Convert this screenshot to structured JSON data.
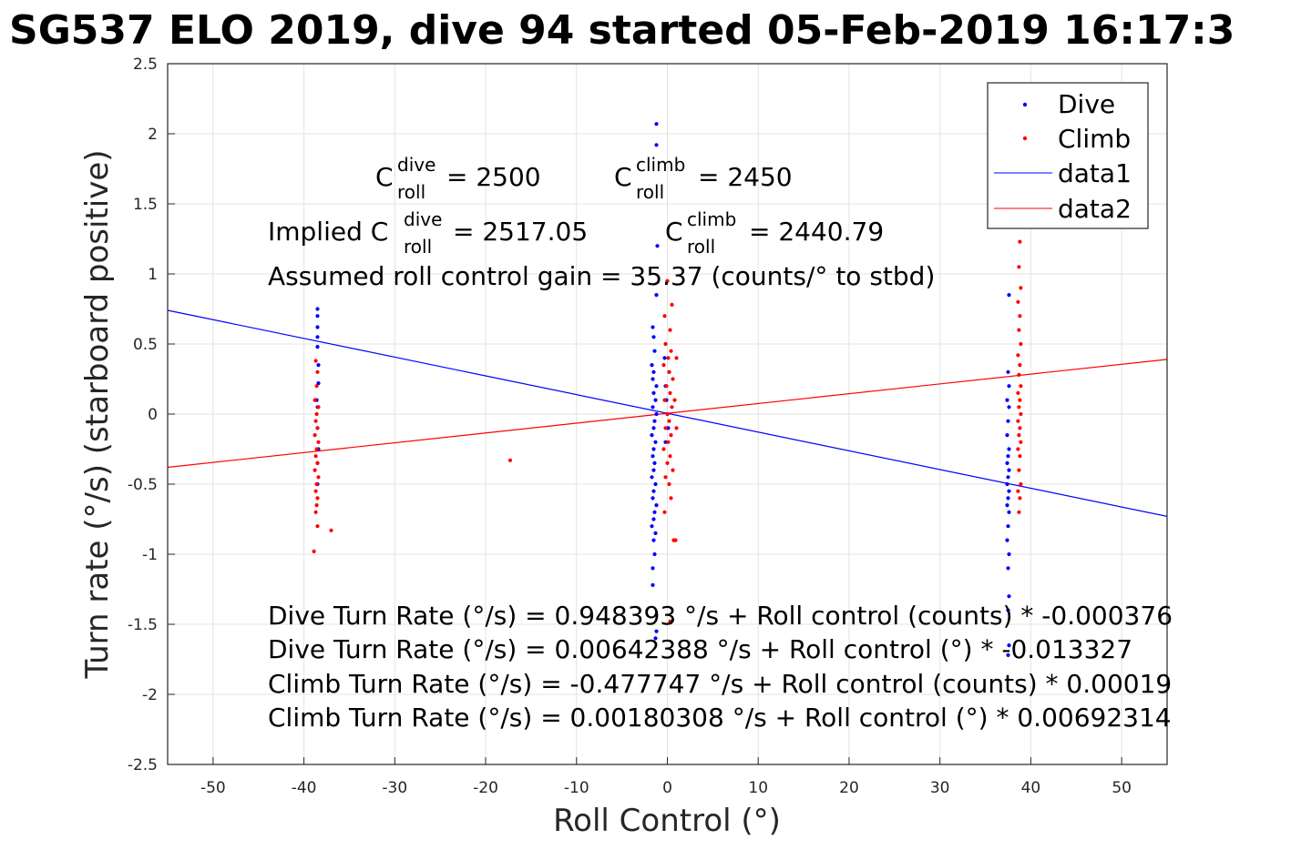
{
  "chart_data": {
    "type": "scatter",
    "title": "SG537 ELO 2019, dive 94 started 05-Feb-2019 16:17:3",
    "xlabel": "Roll Control (°)",
    "ylabel": "Turn rate (°/s) (starboard positive)",
    "xlim": [
      -55,
      55
    ],
    "ylim": [
      -2.5,
      2.5
    ],
    "xticks": [
      -50,
      -40,
      -30,
      -20,
      -10,
      0,
      10,
      20,
      30,
      40,
      50
    ],
    "yticks": [
      -2.5,
      -2,
      -1.5,
      -1,
      -0.5,
      0,
      0.5,
      1,
      1.5,
      2,
      2.5
    ],
    "grid": true,
    "legend_position": "top-right",
    "legend": [
      "Dive",
      "Climb",
      "data1",
      "data2"
    ],
    "colors": {
      "dive": "#0000ff",
      "climb": "#ff0000"
    },
    "series": [
      {
        "name": "Dive",
        "kind": "points",
        "color": "#0000ff",
        "points": [
          [
            -38.5,
            0.75
          ],
          [
            -38.5,
            0.7
          ],
          [
            -38.5,
            0.62
          ],
          [
            -38.5,
            0.55
          ],
          [
            -38.5,
            0.48
          ],
          [
            -38.4,
            0.35
          ],
          [
            -38.4,
            0.22
          ],
          [
            -38.6,
            0.1
          ],
          [
            -38.5,
            0.05
          ],
          [
            -38.5,
            -0.1
          ],
          [
            -38.4,
            -0.25
          ],
          [
            -38.5,
            -0.35
          ],
          [
            -38.5,
            -0.5
          ],
          [
            -1.2,
            2.07
          ],
          [
            -1.2,
            1.92
          ],
          [
            -1.1,
            1.2
          ],
          [
            -1.2,
            0.85
          ],
          [
            -1.6,
            0.62
          ],
          [
            -1.5,
            0.55
          ],
          [
            -1.4,
            0.45
          ],
          [
            -1.7,
            0.35
          ],
          [
            -1.5,
            0.3
          ],
          [
            -1.6,
            0.25
          ],
          [
            -1.2,
            0.2
          ],
          [
            -1.5,
            0.15
          ],
          [
            -1.3,
            0.1
          ],
          [
            -1.6,
            0.05
          ],
          [
            -1.2,
            0.0
          ],
          [
            -1.4,
            -0.05
          ],
          [
            -1.5,
            -0.1
          ],
          [
            -1.7,
            -0.15
          ],
          [
            -1.3,
            -0.2
          ],
          [
            -1.5,
            -0.25
          ],
          [
            -1.6,
            -0.3
          ],
          [
            -1.4,
            -0.35
          ],
          [
            -1.5,
            -0.4
          ],
          [
            -1.7,
            -0.45
          ],
          [
            -1.3,
            -0.5
          ],
          [
            -1.5,
            -0.55
          ],
          [
            -1.6,
            -0.6
          ],
          [
            -1.2,
            -0.65
          ],
          [
            -1.4,
            -0.7
          ],
          [
            -1.5,
            -0.75
          ],
          [
            -1.7,
            -0.8
          ],
          [
            -1.3,
            -0.85
          ],
          [
            -1.5,
            -0.9
          ],
          [
            -1.4,
            -1.0
          ],
          [
            -1.6,
            -1.1
          ],
          [
            -1.6,
            -1.22
          ],
          [
            -1.2,
            -1.55
          ],
          [
            -1.3,
            -1.6
          ],
          [
            -0.3,
            0.4
          ],
          [
            -0.2,
            0.2
          ],
          [
            -0.1,
            0.1
          ],
          [
            0.0,
            0.0
          ],
          [
            0.1,
            -0.1
          ],
          [
            -0.2,
            -0.2
          ],
          [
            0.2,
            0.3
          ],
          [
            37.6,
            0.85
          ],
          [
            37.5,
            0.3
          ],
          [
            37.6,
            0.2
          ],
          [
            37.4,
            0.1
          ],
          [
            37.6,
            0.05
          ],
          [
            37.5,
            -0.05
          ],
          [
            37.4,
            -0.15
          ],
          [
            37.6,
            -0.25
          ],
          [
            37.5,
            -0.3
          ],
          [
            37.4,
            -0.35
          ],
          [
            37.6,
            -0.4
          ],
          [
            37.5,
            -0.45
          ],
          [
            37.4,
            -0.5
          ],
          [
            37.6,
            -0.55
          ],
          [
            37.5,
            -0.6
          ],
          [
            37.4,
            -0.65
          ],
          [
            37.6,
            -0.7
          ],
          [
            37.5,
            -0.8
          ],
          [
            37.4,
            -0.9
          ],
          [
            37.6,
            -1.0
          ],
          [
            37.5,
            -1.1
          ],
          [
            37.6,
            -1.3
          ],
          [
            37.5,
            -1.4
          ],
          [
            37.6,
            -1.65
          ],
          [
            37.5,
            -1.72
          ]
        ]
      },
      {
        "name": "Climb",
        "kind": "points",
        "color": "#ff0000",
        "points": [
          [
            -38.7,
            0.38
          ],
          [
            -38.5,
            0.3
          ],
          [
            -38.6,
            0.2
          ],
          [
            -38.8,
            0.1
          ],
          [
            -38.4,
            0.05
          ],
          [
            -38.6,
            0.0
          ],
          [
            -38.7,
            -0.05
          ],
          [
            -38.5,
            -0.1
          ],
          [
            -38.8,
            -0.15
          ],
          [
            -38.4,
            -0.2
          ],
          [
            -38.6,
            -0.25
          ],
          [
            -38.7,
            -0.3
          ],
          [
            -38.5,
            -0.35
          ],
          [
            -38.8,
            -0.4
          ],
          [
            -38.4,
            -0.45
          ],
          [
            -38.6,
            -0.5
          ],
          [
            -38.7,
            -0.55
          ],
          [
            -38.5,
            -0.6
          ],
          [
            -38.6,
            -0.65
          ],
          [
            -38.7,
            -0.7
          ],
          [
            -38.5,
            -0.8
          ],
          [
            -38.9,
            -0.98
          ],
          [
            -37.0,
            -0.83
          ],
          [
            -17.3,
            -0.33
          ],
          [
            0.0,
            0.95
          ],
          [
            0.5,
            0.78
          ],
          [
            -0.3,
            0.7
          ],
          [
            0.3,
            0.6
          ],
          [
            -0.2,
            0.5
          ],
          [
            0.4,
            0.45
          ],
          [
            0.1,
            0.4
          ],
          [
            -0.4,
            0.35
          ],
          [
            0.2,
            0.3
          ],
          [
            0.6,
            0.25
          ],
          [
            -0.1,
            0.2
          ],
          [
            0.3,
            0.15
          ],
          [
            -0.3,
            0.1
          ],
          [
            0.5,
            0.05
          ],
          [
            0.0,
            0.0
          ],
          [
            0.2,
            -0.05
          ],
          [
            -0.2,
            -0.1
          ],
          [
            0.4,
            -0.15
          ],
          [
            0.1,
            -0.2
          ],
          [
            -0.4,
            -0.25
          ],
          [
            0.3,
            -0.3
          ],
          [
            0.0,
            -0.35
          ],
          [
            0.6,
            -0.4
          ],
          [
            -0.2,
            -0.45
          ],
          [
            0.2,
            -0.5
          ],
          [
            0.4,
            -0.6
          ],
          [
            -0.3,
            -0.7
          ],
          [
            0.7,
            -0.9
          ],
          [
            0.9,
            -0.9
          ],
          [
            0.3,
            -1.48
          ],
          [
            1.0,
            0.4
          ],
          [
            1.0,
            -0.1
          ],
          [
            0.8,
            0.1
          ],
          [
            38.8,
            1.23
          ],
          [
            38.7,
            1.05
          ],
          [
            38.9,
            0.9
          ],
          [
            38.6,
            0.8
          ],
          [
            38.8,
            0.7
          ],
          [
            38.7,
            0.6
          ],
          [
            38.9,
            0.5
          ],
          [
            38.6,
            0.42
          ],
          [
            38.8,
            0.35
          ],
          [
            38.7,
            0.28
          ],
          [
            38.9,
            0.2
          ],
          [
            38.6,
            0.15
          ],
          [
            38.8,
            0.1
          ],
          [
            38.7,
            0.05
          ],
          [
            38.9,
            0.0
          ],
          [
            38.6,
            -0.05
          ],
          [
            38.8,
            -0.1
          ],
          [
            38.7,
            -0.15
          ],
          [
            38.9,
            -0.2
          ],
          [
            38.6,
            -0.25
          ],
          [
            38.8,
            -0.3
          ],
          [
            38.7,
            -0.4
          ],
          [
            38.9,
            -0.5
          ],
          [
            38.6,
            -0.55
          ],
          [
            38.8,
            -0.6
          ],
          [
            38.7,
            -0.7
          ]
        ]
      },
      {
        "name": "data1",
        "kind": "line",
        "color": "#0000ff",
        "x": [
          -55,
          55
        ],
        "y": [
          0.74,
          -0.73
        ]
      },
      {
        "name": "data2",
        "kind": "line",
        "color": "#ff0000",
        "x": [
          -55,
          55
        ],
        "y": [
          -0.38,
          0.39
        ]
      }
    ],
    "annotations": {
      "c_roll_dive_prefix": "C",
      "c_roll_dive_sup": "dive",
      "c_roll_dive_sub": "roll",
      "c_roll_dive_value": " = 2500",
      "c_roll_climb_prefix": "C",
      "c_roll_climb_sup": "climb",
      "c_roll_climb_sub": "roll",
      "c_roll_climb_value": " = 2450",
      "implied_prefix": "Implied C",
      "implied_dive_sup": "dive",
      "implied_dive_sub": "roll",
      "implied_dive_value": " = 2517.05",
      "implied_climb_prefix": "C",
      "implied_climb_sup": "climb",
      "implied_climb_sub": "roll",
      "implied_climb_value": " = 2440.79",
      "gain": "Assumed roll control gain = 35.37 (counts/° to stbd)",
      "eq1": "Dive Turn Rate (°/s) = 0.948393 °/s + Roll control (counts) * -0.000376",
      "eq2": "Dive Turn Rate (°/s) = 0.00642388 °/s + Roll control (°) * -0.013327",
      "eq3": "Climb Turn Rate (°/s) = -0.477747 °/s + Roll control (counts) * 0.00019",
      "eq4": "Climb Turn Rate (°/s) = 0.00180308 °/s + Roll control (°) * 0.00692314"
    }
  }
}
